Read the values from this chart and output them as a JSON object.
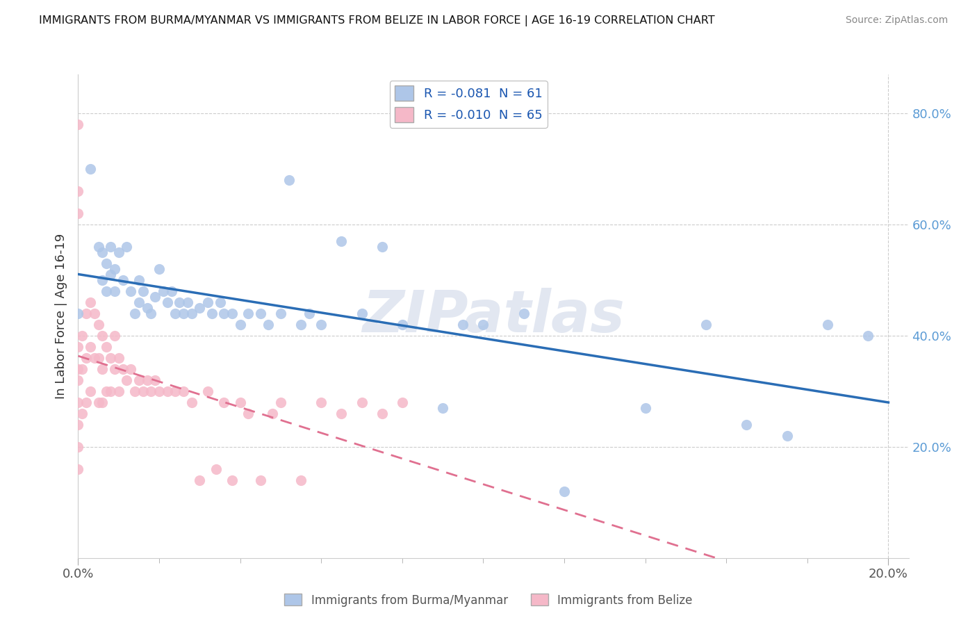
{
  "title": "IMMIGRANTS FROM BURMA/MYANMAR VS IMMIGRANTS FROM BELIZE IN LABOR FORCE | AGE 16-19 CORRELATION CHART",
  "source": "Source: ZipAtlas.com",
  "ylabel": "In Labor Force | Age 16-19",
  "legend1_label": "Immigrants from Burma/Myanmar",
  "legend2_label": "Immigrants from Belize",
  "R1": -0.081,
  "N1": 61,
  "R2": -0.01,
  "N2": 65,
  "color_burma": "#aec6e8",
  "color_belize": "#f5b8c8",
  "line_color_burma": "#2a6db5",
  "line_color_belize": "#e07090",
  "watermark": "ZIPatlas",
  "xlim_min": 0.0,
  "xlim_max": 0.205,
  "ylim_min": 0.0,
  "ylim_max": 0.87,
  "background_color": "#ffffff",
  "grid_color": "#cccccc",
  "tick_color_y": "#5b9bd5",
  "tick_color_x": "#555555",
  "burma_x": [
    0.0,
    0.003,
    0.005,
    0.006,
    0.006,
    0.007,
    0.007,
    0.008,
    0.008,
    0.009,
    0.009,
    0.01,
    0.011,
    0.012,
    0.013,
    0.014,
    0.015,
    0.015,
    0.016,
    0.017,
    0.018,
    0.019,
    0.02,
    0.021,
    0.022,
    0.023,
    0.024,
    0.025,
    0.026,
    0.027,
    0.028,
    0.03,
    0.032,
    0.033,
    0.035,
    0.036,
    0.038,
    0.04,
    0.042,
    0.045,
    0.047,
    0.05,
    0.052,
    0.055,
    0.057,
    0.06,
    0.065,
    0.07,
    0.075,
    0.08,
    0.09,
    0.095,
    0.1,
    0.11,
    0.12,
    0.14,
    0.155,
    0.165,
    0.175,
    0.185,
    0.195
  ],
  "burma_y": [
    0.44,
    0.7,
    0.56,
    0.55,
    0.5,
    0.53,
    0.48,
    0.56,
    0.51,
    0.52,
    0.48,
    0.55,
    0.5,
    0.56,
    0.48,
    0.44,
    0.5,
    0.46,
    0.48,
    0.45,
    0.44,
    0.47,
    0.52,
    0.48,
    0.46,
    0.48,
    0.44,
    0.46,
    0.44,
    0.46,
    0.44,
    0.45,
    0.46,
    0.44,
    0.46,
    0.44,
    0.44,
    0.42,
    0.44,
    0.44,
    0.42,
    0.44,
    0.68,
    0.42,
    0.44,
    0.42,
    0.57,
    0.44,
    0.56,
    0.42,
    0.27,
    0.42,
    0.42,
    0.44,
    0.12,
    0.27,
    0.42,
    0.24,
    0.22,
    0.42,
    0.4
  ],
  "belize_x": [
    0.0,
    0.0,
    0.0,
    0.0,
    0.0,
    0.0,
    0.0,
    0.0,
    0.0,
    0.0,
    0.001,
    0.001,
    0.001,
    0.002,
    0.002,
    0.002,
    0.003,
    0.003,
    0.003,
    0.004,
    0.004,
    0.005,
    0.005,
    0.005,
    0.006,
    0.006,
    0.006,
    0.007,
    0.007,
    0.008,
    0.008,
    0.009,
    0.009,
    0.01,
    0.01,
    0.011,
    0.012,
    0.013,
    0.014,
    0.015,
    0.016,
    0.017,
    0.018,
    0.019,
    0.02,
    0.022,
    0.024,
    0.026,
    0.028,
    0.03,
    0.032,
    0.034,
    0.036,
    0.038,
    0.04,
    0.042,
    0.045,
    0.048,
    0.05,
    0.055,
    0.06,
    0.065,
    0.07,
    0.075,
    0.08
  ],
  "belize_y": [
    0.78,
    0.66,
    0.62,
    0.38,
    0.34,
    0.32,
    0.28,
    0.24,
    0.2,
    0.16,
    0.4,
    0.34,
    0.26,
    0.44,
    0.36,
    0.28,
    0.46,
    0.38,
    0.3,
    0.44,
    0.36,
    0.42,
    0.36,
    0.28,
    0.4,
    0.34,
    0.28,
    0.38,
    0.3,
    0.36,
    0.3,
    0.4,
    0.34,
    0.36,
    0.3,
    0.34,
    0.32,
    0.34,
    0.3,
    0.32,
    0.3,
    0.32,
    0.3,
    0.32,
    0.3,
    0.3,
    0.3,
    0.3,
    0.28,
    0.14,
    0.3,
    0.16,
    0.28,
    0.14,
    0.28,
    0.26,
    0.14,
    0.26,
    0.28,
    0.14,
    0.28,
    0.26,
    0.28,
    0.26,
    0.28
  ]
}
